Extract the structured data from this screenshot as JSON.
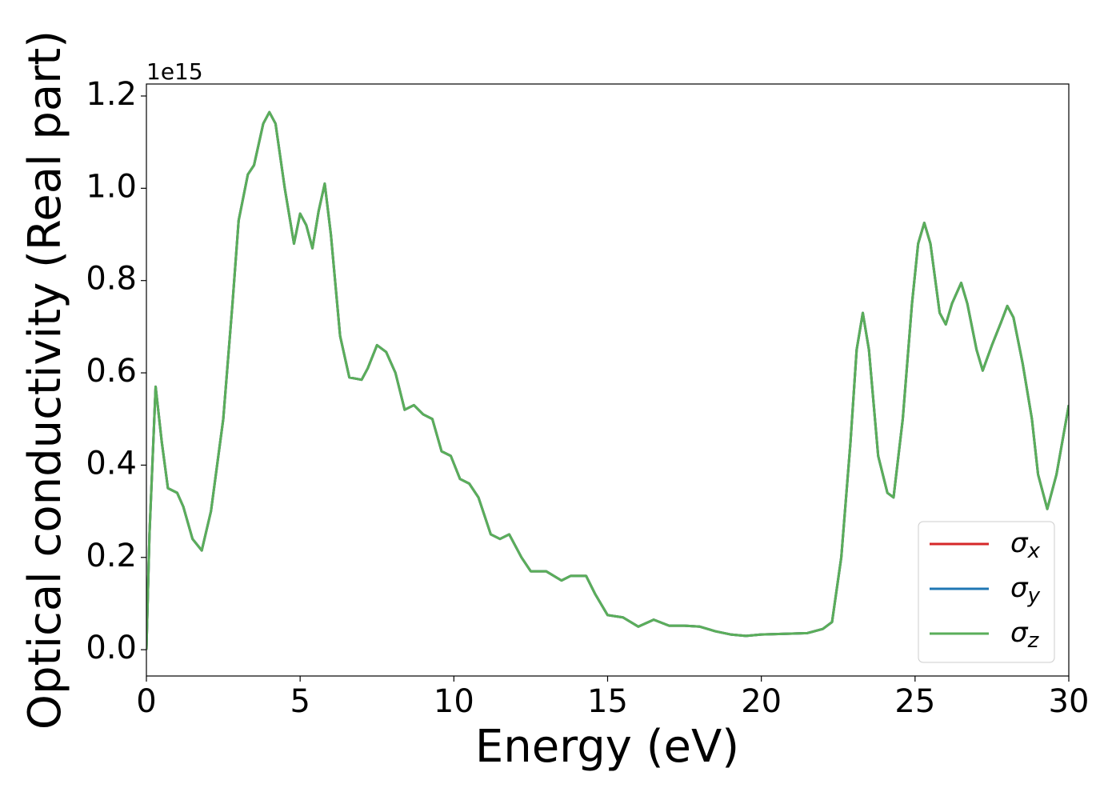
{
  "chart_data": {
    "type": "line",
    "xlabel": "Energy (eV)",
    "ylabel": "Optical conductivity (Real part)",
    "y_offset_label": "1e15",
    "xlim": [
      0,
      30
    ],
    "xticks": [
      0,
      5,
      10,
      15,
      20,
      25,
      30
    ],
    "ylim": [
      -0.057,
      1.226
    ],
    "yticks": [
      {
        "value": 0,
        "label": "0.0"
      },
      0.2,
      0.4,
      0.6,
      0.8,
      {
        "value": 1,
        "label": "1.0"
      },
      1.2
    ],
    "legend": "lower right",
    "x": [
      0,
      0.1,
      0.3,
      0.5,
      0.7,
      1.0,
      1.2,
      1.5,
      1.8,
      2.1,
      2.5,
      2.8,
      3.0,
      3.3,
      3.5,
      3.8,
      4.0,
      4.2,
      4.5,
      4.8,
      5.0,
      5.2,
      5.4,
      5.6,
      5.8,
      6.0,
      6.3,
      6.6,
      7.0,
      7.2,
      7.5,
      7.8,
      8.1,
      8.4,
      8.7,
      9.0,
      9.3,
      9.6,
      9.9,
      10.2,
      10.5,
      10.8,
      11.2,
      11.5,
      11.8,
      12.2,
      12.5,
      13.0,
      13.5,
      13.8,
      14.3,
      14.6,
      15.0,
      15.5,
      16.0,
      16.5,
      17.0,
      17.5,
      18.0,
      18.5,
      19.0,
      19.5,
      20.0,
      21.0,
      21.5,
      22.0,
      22.3,
      22.6,
      22.9,
      23.1,
      23.3,
      23.5,
      23.8,
      24.1,
      24.3,
      24.6,
      24.9,
      25.1,
      25.3,
      25.5,
      25.8,
      26.0,
      26.2,
      26.5,
      26.7,
      27.0,
      27.2,
      27.5,
      27.8,
      28.0,
      28.2,
      28.5,
      28.8,
      29.0,
      29.3,
      29.6,
      30.0
    ],
    "series": [
      {
        "name": "σx",
        "color": "#d62728",
        "values": [
          0.0,
          0.25,
          0.57,
          0.45,
          0.35,
          0.34,
          0.31,
          0.24,
          0.215,
          0.3,
          0.5,
          0.75,
          0.93,
          1.03,
          1.05,
          1.14,
          1.165,
          1.14,
          1.0,
          0.88,
          0.945,
          0.92,
          0.87,
          0.95,
          1.01,
          0.9,
          0.68,
          0.59,
          0.585,
          0.61,
          0.66,
          0.645,
          0.6,
          0.52,
          0.53,
          0.51,
          0.5,
          0.43,
          0.42,
          0.37,
          0.36,
          0.33,
          0.25,
          0.24,
          0.25,
          0.2,
          0.17,
          0.17,
          0.15,
          0.16,
          0.16,
          0.12,
          0.075,
          0.07,
          0.05,
          0.065,
          0.052,
          0.052,
          0.05,
          0.04,
          0.033,
          0.03,
          0.033,
          0.035,
          0.036,
          0.045,
          0.06,
          0.2,
          0.45,
          0.65,
          0.73,
          0.65,
          0.42,
          0.34,
          0.33,
          0.5,
          0.75,
          0.88,
          0.925,
          0.88,
          0.73,
          0.705,
          0.75,
          0.795,
          0.75,
          0.65,
          0.605,
          0.66,
          0.71,
          0.745,
          0.72,
          0.62,
          0.5,
          0.38,
          0.305,
          0.38,
          0.53
        ]
      },
      {
        "name": "σy",
        "color": "#1f77b4",
        "values": [
          0.0,
          0.25,
          0.57,
          0.45,
          0.35,
          0.34,
          0.31,
          0.24,
          0.215,
          0.3,
          0.5,
          0.75,
          0.93,
          1.03,
          1.05,
          1.14,
          1.165,
          1.14,
          1.0,
          0.88,
          0.945,
          0.92,
          0.87,
          0.95,
          1.01,
          0.9,
          0.68,
          0.59,
          0.585,
          0.61,
          0.66,
          0.645,
          0.6,
          0.52,
          0.53,
          0.51,
          0.5,
          0.43,
          0.42,
          0.37,
          0.36,
          0.33,
          0.25,
          0.24,
          0.25,
          0.2,
          0.17,
          0.17,
          0.15,
          0.16,
          0.16,
          0.12,
          0.075,
          0.07,
          0.05,
          0.065,
          0.052,
          0.052,
          0.05,
          0.04,
          0.033,
          0.03,
          0.033,
          0.035,
          0.036,
          0.045,
          0.06,
          0.2,
          0.45,
          0.65,
          0.73,
          0.65,
          0.42,
          0.34,
          0.33,
          0.5,
          0.75,
          0.88,
          0.925,
          0.88,
          0.73,
          0.705,
          0.75,
          0.795,
          0.75,
          0.65,
          0.605,
          0.66,
          0.71,
          0.745,
          0.72,
          0.62,
          0.5,
          0.38,
          0.305,
          0.38,
          0.53
        ]
      },
      {
        "name": "σz",
        "color": "#5aae5a",
        "values": [
          0.0,
          0.25,
          0.57,
          0.45,
          0.35,
          0.34,
          0.31,
          0.24,
          0.215,
          0.3,
          0.5,
          0.75,
          0.93,
          1.03,
          1.05,
          1.14,
          1.165,
          1.14,
          1.0,
          0.88,
          0.945,
          0.92,
          0.87,
          0.95,
          1.01,
          0.9,
          0.68,
          0.59,
          0.585,
          0.61,
          0.66,
          0.645,
          0.6,
          0.52,
          0.53,
          0.51,
          0.5,
          0.43,
          0.42,
          0.37,
          0.36,
          0.33,
          0.25,
          0.24,
          0.25,
          0.2,
          0.17,
          0.17,
          0.15,
          0.16,
          0.16,
          0.12,
          0.075,
          0.07,
          0.05,
          0.065,
          0.052,
          0.052,
          0.05,
          0.04,
          0.033,
          0.03,
          0.033,
          0.035,
          0.036,
          0.045,
          0.06,
          0.2,
          0.45,
          0.65,
          0.73,
          0.65,
          0.42,
          0.34,
          0.33,
          0.5,
          0.75,
          0.88,
          0.925,
          0.88,
          0.73,
          0.705,
          0.75,
          0.795,
          0.75,
          0.65,
          0.605,
          0.66,
          0.71,
          0.745,
          0.72,
          0.62,
          0.5,
          0.38,
          0.305,
          0.38,
          0.53
        ]
      }
    ]
  }
}
